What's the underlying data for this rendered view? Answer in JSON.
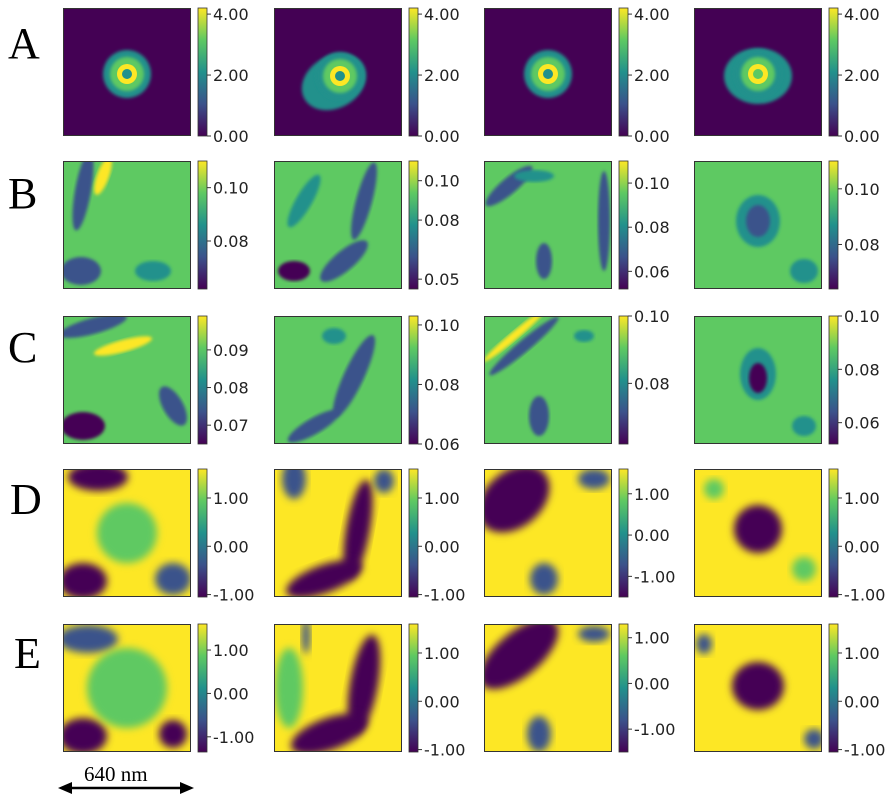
{
  "figure": {
    "row_labels": [
      "A",
      "B",
      "C",
      "D",
      "E"
    ],
    "scale_bar": {
      "label": "640 nm"
    }
  },
  "colors": {
    "viridis": [
      "#440154",
      "#3b528b",
      "#21918c",
      "#5ec962",
      "#fde725"
    ]
  },
  "chart_data": [
    {
      "type": "heatmap",
      "row": "A",
      "col": 1,
      "colorbar_ticks": [
        "4.00",
        "2.00",
        "0.00"
      ],
      "vmin": 0,
      "vmax": 4.2,
      "grid": false
    },
    {
      "type": "heatmap",
      "row": "A",
      "col": 2,
      "colorbar_ticks": [
        "4.00",
        "2.00",
        "0.00"
      ],
      "vmin": 0,
      "vmax": 4.2,
      "grid": false
    },
    {
      "type": "heatmap",
      "row": "A",
      "col": 3,
      "colorbar_ticks": [
        "4.00",
        "2.00",
        "0.00"
      ],
      "vmin": 0,
      "vmax": 4.2,
      "grid": false
    },
    {
      "type": "heatmap",
      "row": "A",
      "col": 4,
      "colorbar_ticks": [
        "4.00",
        "2.00",
        "0.00"
      ],
      "vmin": 0,
      "vmax": 4.2,
      "grid": false
    },
    {
      "type": "heatmap",
      "row": "B",
      "col": 1,
      "colorbar_ticks": [
        "0.10",
        "0.08"
      ],
      "vmin": 0.062,
      "vmax": 0.11,
      "grid": false
    },
    {
      "type": "heatmap",
      "row": "B",
      "col": 2,
      "colorbar_ticks": [
        "0.10",
        "0.08",
        "0.05"
      ],
      "vmin": 0.045,
      "vmax": 0.11,
      "grid": false
    },
    {
      "type": "heatmap",
      "row": "B",
      "col": 3,
      "colorbar_ticks": [
        "0.10",
        "0.08",
        "0.06"
      ],
      "vmin": 0.052,
      "vmax": 0.11,
      "grid": false
    },
    {
      "type": "heatmap",
      "row": "B",
      "col": 4,
      "colorbar_ticks": [
        "0.10",
        "0.08"
      ],
      "vmin": 0.064,
      "vmax": 0.11,
      "grid": false
    },
    {
      "type": "heatmap",
      "row": "C",
      "col": 1,
      "colorbar_ticks": [
        "0.09",
        "0.08",
        "0.07"
      ],
      "vmin": 0.065,
      "vmax": 0.099,
      "grid": false
    },
    {
      "type": "heatmap",
      "row": "C",
      "col": 2,
      "colorbar_ticks": [
        "0.10",
        "0.08",
        "0.06"
      ],
      "vmin": 0.06,
      "vmax": 0.103,
      "grid": false
    },
    {
      "type": "heatmap",
      "row": "C",
      "col": 3,
      "colorbar_ticks": [
        "0.10",
        "0.08"
      ],
      "vmin": 0.062,
      "vmax": 0.1,
      "grid": false
    },
    {
      "type": "heatmap",
      "row": "C",
      "col": 4,
      "colorbar_ticks": [
        "0.10",
        "0.08",
        "0.06"
      ],
      "vmin": 0.052,
      "vmax": 0.1,
      "grid": false
    },
    {
      "type": "heatmap",
      "row": "D",
      "col": 1,
      "colorbar_ticks": [
        "1.00",
        "0.00",
        "-1.00"
      ],
      "vmin": -1.05,
      "vmax": 1.6,
      "grid": false
    },
    {
      "type": "heatmap",
      "row": "D",
      "col": 2,
      "colorbar_ticks": [
        "1.00",
        "0.00",
        "-1.00"
      ],
      "vmin": -1.05,
      "vmax": 1.6,
      "grid": false
    },
    {
      "type": "heatmap",
      "row": "D",
      "col": 3,
      "colorbar_ticks": [
        "1.00",
        "0.00",
        "-1.00"
      ],
      "vmin": -1.5,
      "vmax": 1.6,
      "grid": false
    },
    {
      "type": "heatmap",
      "row": "D",
      "col": 4,
      "colorbar_ticks": [
        "1.00",
        "0.00",
        "-1.00"
      ],
      "vmin": -1.05,
      "vmax": 1.6,
      "grid": false
    },
    {
      "type": "heatmap",
      "row": "E",
      "col": 1,
      "colorbar_ticks": [
        "1.00",
        "0.00",
        "-1.00"
      ],
      "vmin": -1.35,
      "vmax": 1.6,
      "grid": false
    },
    {
      "type": "heatmap",
      "row": "E",
      "col": 2,
      "colorbar_ticks": [
        "1.00",
        "0.00",
        "-1.00"
      ],
      "vmin": -1.05,
      "vmax": 1.6,
      "grid": false
    },
    {
      "type": "heatmap",
      "row": "E",
      "col": 3,
      "colorbar_ticks": [
        "1.00",
        "0.00",
        "-1.00"
      ],
      "vmin": -1.5,
      "vmax": 1.3,
      "grid": false
    },
    {
      "type": "heatmap",
      "row": "E",
      "col": 4,
      "colorbar_ticks": [
        "1.00",
        "0.00",
        "-1.00"
      ],
      "vmin": -1.05,
      "vmax": 1.6,
      "grid": false
    }
  ]
}
